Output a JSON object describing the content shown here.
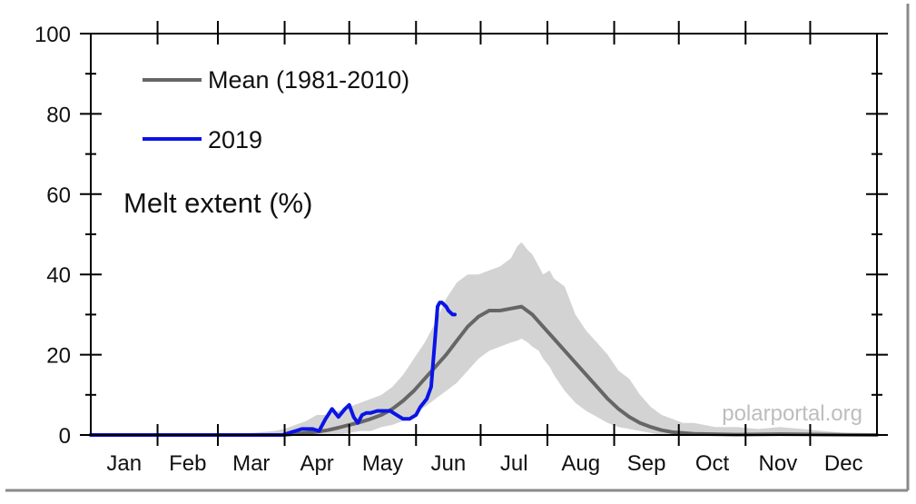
{
  "chart_data": {
    "type": "line",
    "ylabel": "Melt extent (%)",
    "ylim": [
      0,
      100
    ],
    "yticks": [
      0,
      20,
      40,
      60,
      80,
      100
    ],
    "xlim": [
      0,
      365
    ],
    "months": [
      {
        "label": "Jan",
        "start": 0,
        "end": 31
      },
      {
        "label": "Feb",
        "start": 31,
        "end": 59
      },
      {
        "label": "Mar",
        "start": 59,
        "end": 90
      },
      {
        "label": "Apr",
        "start": 90,
        "end": 120
      },
      {
        "label": "May",
        "start": 120,
        "end": 151
      },
      {
        "label": "Jun",
        "start": 151,
        "end": 181
      },
      {
        "label": "Jul",
        "start": 181,
        "end": 212
      },
      {
        "label": "Aug",
        "start": 212,
        "end": 243
      },
      {
        "label": "Sep",
        "start": 243,
        "end": 273
      },
      {
        "label": "Oct",
        "start": 273,
        "end": 304
      },
      {
        "label": "Nov",
        "start": 304,
        "end": 334
      },
      {
        "label": "Dec",
        "start": 334,
        "end": 365
      }
    ],
    "credit": "polarportal.org",
    "colors": {
      "mean": "#666666",
      "y2019": "#0a14e6",
      "band": "#d3d3d3"
    },
    "series": [
      {
        "name": "Mean (1981-2010)",
        "color": "#666666",
        "x": [
          0,
          30,
          60,
          90,
          95,
          100,
          105,
          110,
          115,
          120,
          125,
          130,
          135,
          140,
          145,
          150,
          155,
          160,
          165,
          170,
          175,
          180,
          185,
          190,
          195,
          200,
          205,
          210,
          215,
          220,
          225,
          230,
          235,
          240,
          245,
          250,
          255,
          260,
          265,
          270,
          280,
          300,
          320,
          340,
          365
        ],
        "y": [
          0,
          0,
          0,
          0,
          0.3,
          0.5,
          0.8,
          1.2,
          1.8,
          2.5,
          3.2,
          4,
          5,
          6.5,
          8.5,
          11,
          14,
          17,
          20,
          23.5,
          27,
          29.5,
          31,
          31,
          31.5,
          32,
          30,
          27,
          24,
          21,
          18,
          15,
          12,
          9,
          6.5,
          4.5,
          3,
          2,
          1.2,
          0.7,
          0.3,
          0.1,
          0.2,
          0.1,
          0
        ]
      },
      {
        "name": "2019",
        "color": "#0a14e6",
        "x": [
          0,
          30,
          60,
          89,
          92,
          95,
          98,
          100,
          103,
          106,
          109,
          112,
          115,
          118,
          120,
          122,
          124,
          126,
          128,
          130,
          133,
          136,
          139,
          142,
          145,
          148,
          151,
          153,
          156,
          158,
          160,
          161,
          162,
          163,
          164,
          165,
          166,
          167,
          168,
          169
        ],
        "y": [
          0,
          0,
          0,
          0,
          0.5,
          1,
          1.5,
          1.5,
          1.5,
          1,
          4,
          6.5,
          4.5,
          6.5,
          7.5,
          4.5,
          3,
          5,
          5.5,
          5.5,
          6,
          6,
          6,
          5,
          4,
          4,
          5,
          7,
          9,
          12,
          25,
          32,
          33,
          33,
          32.5,
          32,
          31,
          30.5,
          30,
          30
        ]
      }
    ],
    "band": {
      "x": [
        60,
        75,
        85,
        90,
        95,
        100,
        105,
        110,
        115,
        120,
        125,
        130,
        135,
        140,
        145,
        150,
        155,
        160,
        165,
        170,
        175,
        180,
        185,
        190,
        195,
        198,
        200,
        203,
        205,
        208,
        210,
        213,
        215,
        220,
        225,
        230,
        235,
        240,
        245,
        250,
        255,
        260,
        265,
        270,
        275,
        280,
        290,
        300,
        310,
        320,
        330,
        340,
        350,
        365
      ],
      "upper": [
        0,
        0.5,
        1,
        1.5,
        2.5,
        3.5,
        5,
        5,
        6,
        7,
        8,
        9,
        10,
        12,
        15,
        19,
        23,
        28,
        34,
        38,
        40,
        40,
        41,
        42,
        44,
        47,
        48,
        46,
        45,
        42,
        40,
        41,
        39,
        37,
        30,
        26,
        23,
        20,
        16,
        14,
        10,
        7,
        5,
        4,
        3,
        3,
        2,
        2,
        1.5,
        2,
        1.5,
        1,
        0.5,
        0
      ],
      "lower": [
        0,
        0,
        0,
        0,
        0,
        0,
        0,
        0,
        0,
        0.5,
        1,
        1,
        2,
        2.5,
        3.5,
        5,
        7,
        9,
        11,
        13,
        16,
        19,
        21,
        22,
        23,
        23.5,
        24,
        23,
        22,
        21,
        19,
        17,
        15,
        11,
        8,
        6,
        4.5,
        3,
        2,
        1.5,
        1,
        0.5,
        0,
        0,
        0,
        0,
        0,
        0,
        0,
        0,
        0,
        0,
        0,
        0
      ]
    }
  }
}
